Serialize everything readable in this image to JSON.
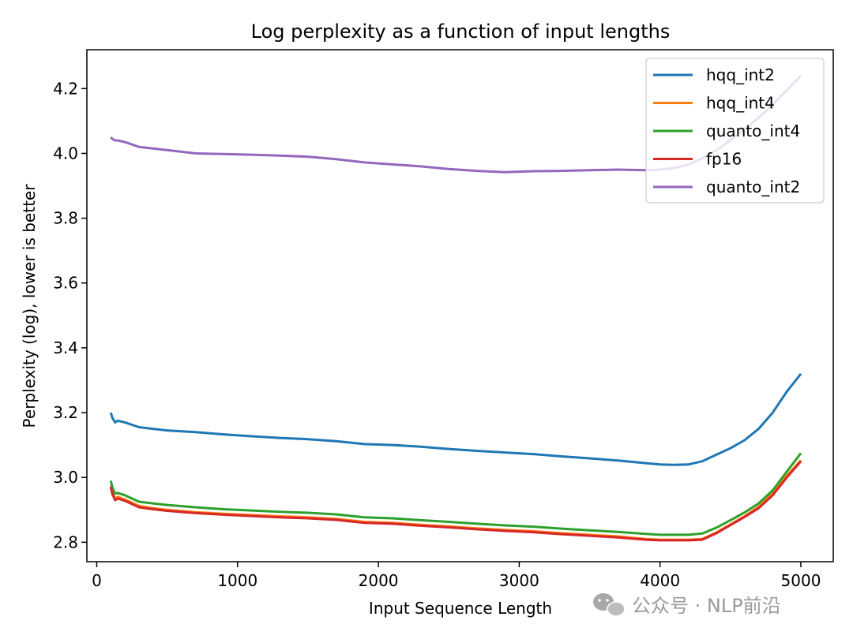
{
  "chart_data": {
    "type": "line",
    "title": "Log perplexity as a function of input lengths",
    "xlabel": "Input Sequence Length",
    "ylabel": "Perplexity (log), lower is better",
    "xlim": [
      -70,
      5230
    ],
    "ylim": [
      2.74,
      4.32
    ],
    "xticks": [
      0,
      1000,
      2000,
      3000,
      4000,
      5000
    ],
    "yticks": [
      2.8,
      3.0,
      3.2,
      3.4,
      3.6,
      3.8,
      4.0,
      4.2
    ],
    "xtick_labels": [
      "0",
      "1000",
      "2000",
      "3000",
      "4000",
      "5000"
    ],
    "ytick_labels": [
      "2.8",
      "3.0",
      "3.2",
      "3.4",
      "3.6",
      "3.8",
      "4.0",
      "4.2"
    ],
    "legend_position": "top-right",
    "grid": false,
    "series": [
      {
        "name": "hqq_int2",
        "color": "#1f77b4",
        "x": [
          100,
          110,
          130,
          150,
          200,
          300,
          400,
          500,
          700,
          900,
          1100,
          1300,
          1500,
          1700,
          1900,
          2100,
          2300,
          2500,
          2700,
          2900,
          3100,
          3300,
          3500,
          3700,
          3900,
          4000,
          4100,
          4200,
          4300,
          4400,
          4500,
          4600,
          4700,
          4800,
          4900,
          5000
        ],
        "values": [
          3.2,
          3.185,
          3.17,
          3.175,
          3.17,
          3.155,
          3.15,
          3.145,
          3.14,
          3.133,
          3.127,
          3.122,
          3.118,
          3.112,
          3.103,
          3.1,
          3.095,
          3.088,
          3.082,
          3.077,
          3.072,
          3.065,
          3.059,
          3.052,
          3.044,
          3.04,
          3.039,
          3.04,
          3.05,
          3.07,
          3.09,
          3.115,
          3.15,
          3.2,
          3.265,
          3.32
        ]
      },
      {
        "name": "hqq_int4",
        "color": "#ff7f0e",
        "x": [
          100,
          110,
          130,
          150,
          200,
          300,
          400,
          500,
          700,
          900,
          1100,
          1300,
          1500,
          1700,
          1900,
          2100,
          2300,
          2500,
          2700,
          2900,
          3100,
          3300,
          3500,
          3700,
          3900,
          4000,
          4100,
          4200,
          4300,
          4400,
          4500,
          4600,
          4700,
          4800,
          4900,
          5000
        ],
        "values": [
          2.975,
          2.955,
          2.935,
          2.94,
          2.932,
          2.912,
          2.905,
          2.9,
          2.893,
          2.888,
          2.884,
          2.88,
          2.877,
          2.872,
          2.863,
          2.86,
          2.854,
          2.849,
          2.843,
          2.838,
          2.834,
          2.828,
          2.823,
          2.818,
          2.81,
          2.808,
          2.808,
          2.808,
          2.81,
          2.83,
          2.855,
          2.88,
          2.91,
          2.95,
          3.005,
          3.053
        ]
      },
      {
        "name": "quanto_int4",
        "color": "#2ca02c",
        "x": [
          100,
          110,
          130,
          150,
          200,
          300,
          400,
          500,
          700,
          900,
          1100,
          1300,
          1500,
          1700,
          1900,
          2100,
          2300,
          2500,
          2700,
          2900,
          3100,
          3300,
          3500,
          3700,
          3900,
          4000,
          4100,
          4200,
          4300,
          4400,
          4500,
          4600,
          4700,
          4800,
          4900,
          5000
        ],
        "values": [
          2.99,
          2.97,
          2.95,
          2.952,
          2.945,
          2.925,
          2.92,
          2.915,
          2.908,
          2.902,
          2.898,
          2.894,
          2.891,
          2.886,
          2.877,
          2.874,
          2.868,
          2.863,
          2.857,
          2.852,
          2.848,
          2.842,
          2.837,
          2.832,
          2.826,
          2.823,
          2.823,
          2.823,
          2.827,
          2.845,
          2.868,
          2.892,
          2.92,
          2.96,
          3.018,
          3.075
        ]
      },
      {
        "name": "fp16",
        "color": "#d62728",
        "x": [
          100,
          110,
          130,
          150,
          200,
          300,
          400,
          500,
          700,
          900,
          1100,
          1300,
          1500,
          1700,
          1900,
          2100,
          2300,
          2500,
          2700,
          2900,
          3100,
          3300,
          3500,
          3700,
          3900,
          4000,
          4100,
          4200,
          4300,
          4400,
          4500,
          4600,
          4700,
          4800,
          4900,
          5000
        ],
        "values": [
          2.97,
          2.95,
          2.93,
          2.935,
          2.928,
          2.908,
          2.902,
          2.897,
          2.89,
          2.885,
          2.881,
          2.877,
          2.874,
          2.869,
          2.86,
          2.857,
          2.851,
          2.846,
          2.84,
          2.835,
          2.831,
          2.825,
          2.82,
          2.815,
          2.808,
          2.806,
          2.806,
          2.806,
          2.808,
          2.828,
          2.853,
          2.878,
          2.905,
          2.945,
          3.0,
          3.05
        ]
      },
      {
        "name": "quanto_int2",
        "color": "#9467bd",
        "x": [
          100,
          110,
          130,
          150,
          200,
          300,
          400,
          500,
          700,
          900,
          1100,
          1300,
          1500,
          1700,
          1900,
          2100,
          2300,
          2500,
          2700,
          2900,
          3100,
          3300,
          3500,
          3700,
          3900,
          4000,
          4100,
          4200,
          4300,
          4400,
          4500,
          4600,
          4700,
          4800,
          4900,
          5000
        ],
        "values": [
          4.05,
          4.045,
          4.04,
          4.04,
          4.035,
          4.02,
          4.015,
          4.01,
          4.0,
          3.998,
          3.996,
          3.993,
          3.99,
          3.982,
          3.972,
          3.966,
          3.96,
          3.952,
          3.946,
          3.942,
          3.945,
          3.946,
          3.948,
          3.95,
          3.948,
          3.95,
          3.955,
          3.965,
          3.985,
          4.01,
          4.04,
          4.075,
          4.11,
          4.15,
          4.195,
          4.24
        ]
      }
    ]
  },
  "watermark": {
    "text": "公众号 · NLP前沿",
    "icon": "wechat-icon"
  }
}
